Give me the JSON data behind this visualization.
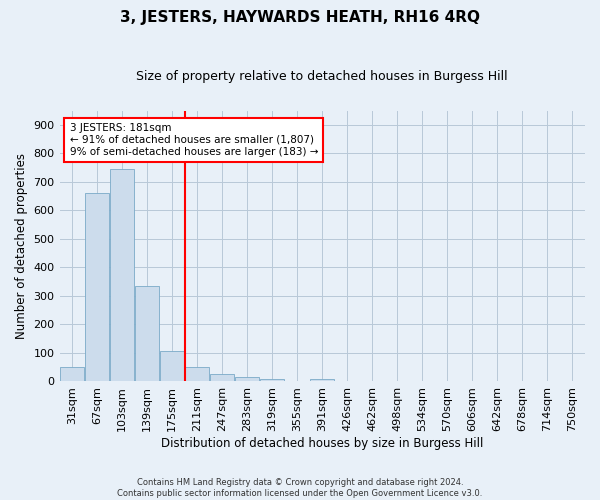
{
  "title": "3, JESTERS, HAYWARDS HEATH, RH16 4RQ",
  "subtitle": "Size of property relative to detached houses in Burgess Hill",
  "xlabel": "Distribution of detached houses by size in Burgess Hill",
  "ylabel": "Number of detached properties",
  "footer_line1": "Contains HM Land Registry data © Crown copyright and database right 2024.",
  "footer_line2": "Contains public sector information licensed under the Open Government Licence v3.0.",
  "bar_labels": [
    "31sqm",
    "67sqm",
    "103sqm",
    "139sqm",
    "175sqm",
    "211sqm",
    "247sqm",
    "283sqm",
    "319sqm",
    "355sqm",
    "391sqm",
    "426sqm",
    "462sqm",
    "498sqm",
    "534sqm",
    "570sqm",
    "606sqm",
    "642sqm",
    "678sqm",
    "714sqm",
    "750sqm"
  ],
  "bar_values": [
    50,
    662,
    745,
    335,
    107,
    50,
    25,
    15,
    10,
    0,
    8,
    0,
    0,
    0,
    0,
    0,
    0,
    0,
    0,
    0,
    0
  ],
  "bar_color": "#ccdcec",
  "bar_edge_color": "#7aaac8",
  "annotation_text": "3 JESTERS: 181sqm\n← 91% of detached houses are smaller (1,807)\n9% of semi-detached houses are larger (183) →",
  "annotation_box_color": "white",
  "annotation_box_edge_color": "red",
  "vline_color": "red",
  "vline_x_index": 4,
  "ylim": [
    0,
    950
  ],
  "yticks": [
    0,
    100,
    200,
    300,
    400,
    500,
    600,
    700,
    800,
    900
  ],
  "background_color": "#e8f0f8",
  "grid_color": "#b8c8d8",
  "title_fontsize": 11,
  "subtitle_fontsize": 9,
  "ylabel_fontsize": 8.5,
  "xlabel_fontsize": 8.5,
  "tick_fontsize": 8,
  "annot_fontsize": 7.5,
  "footer_fontsize": 6
}
